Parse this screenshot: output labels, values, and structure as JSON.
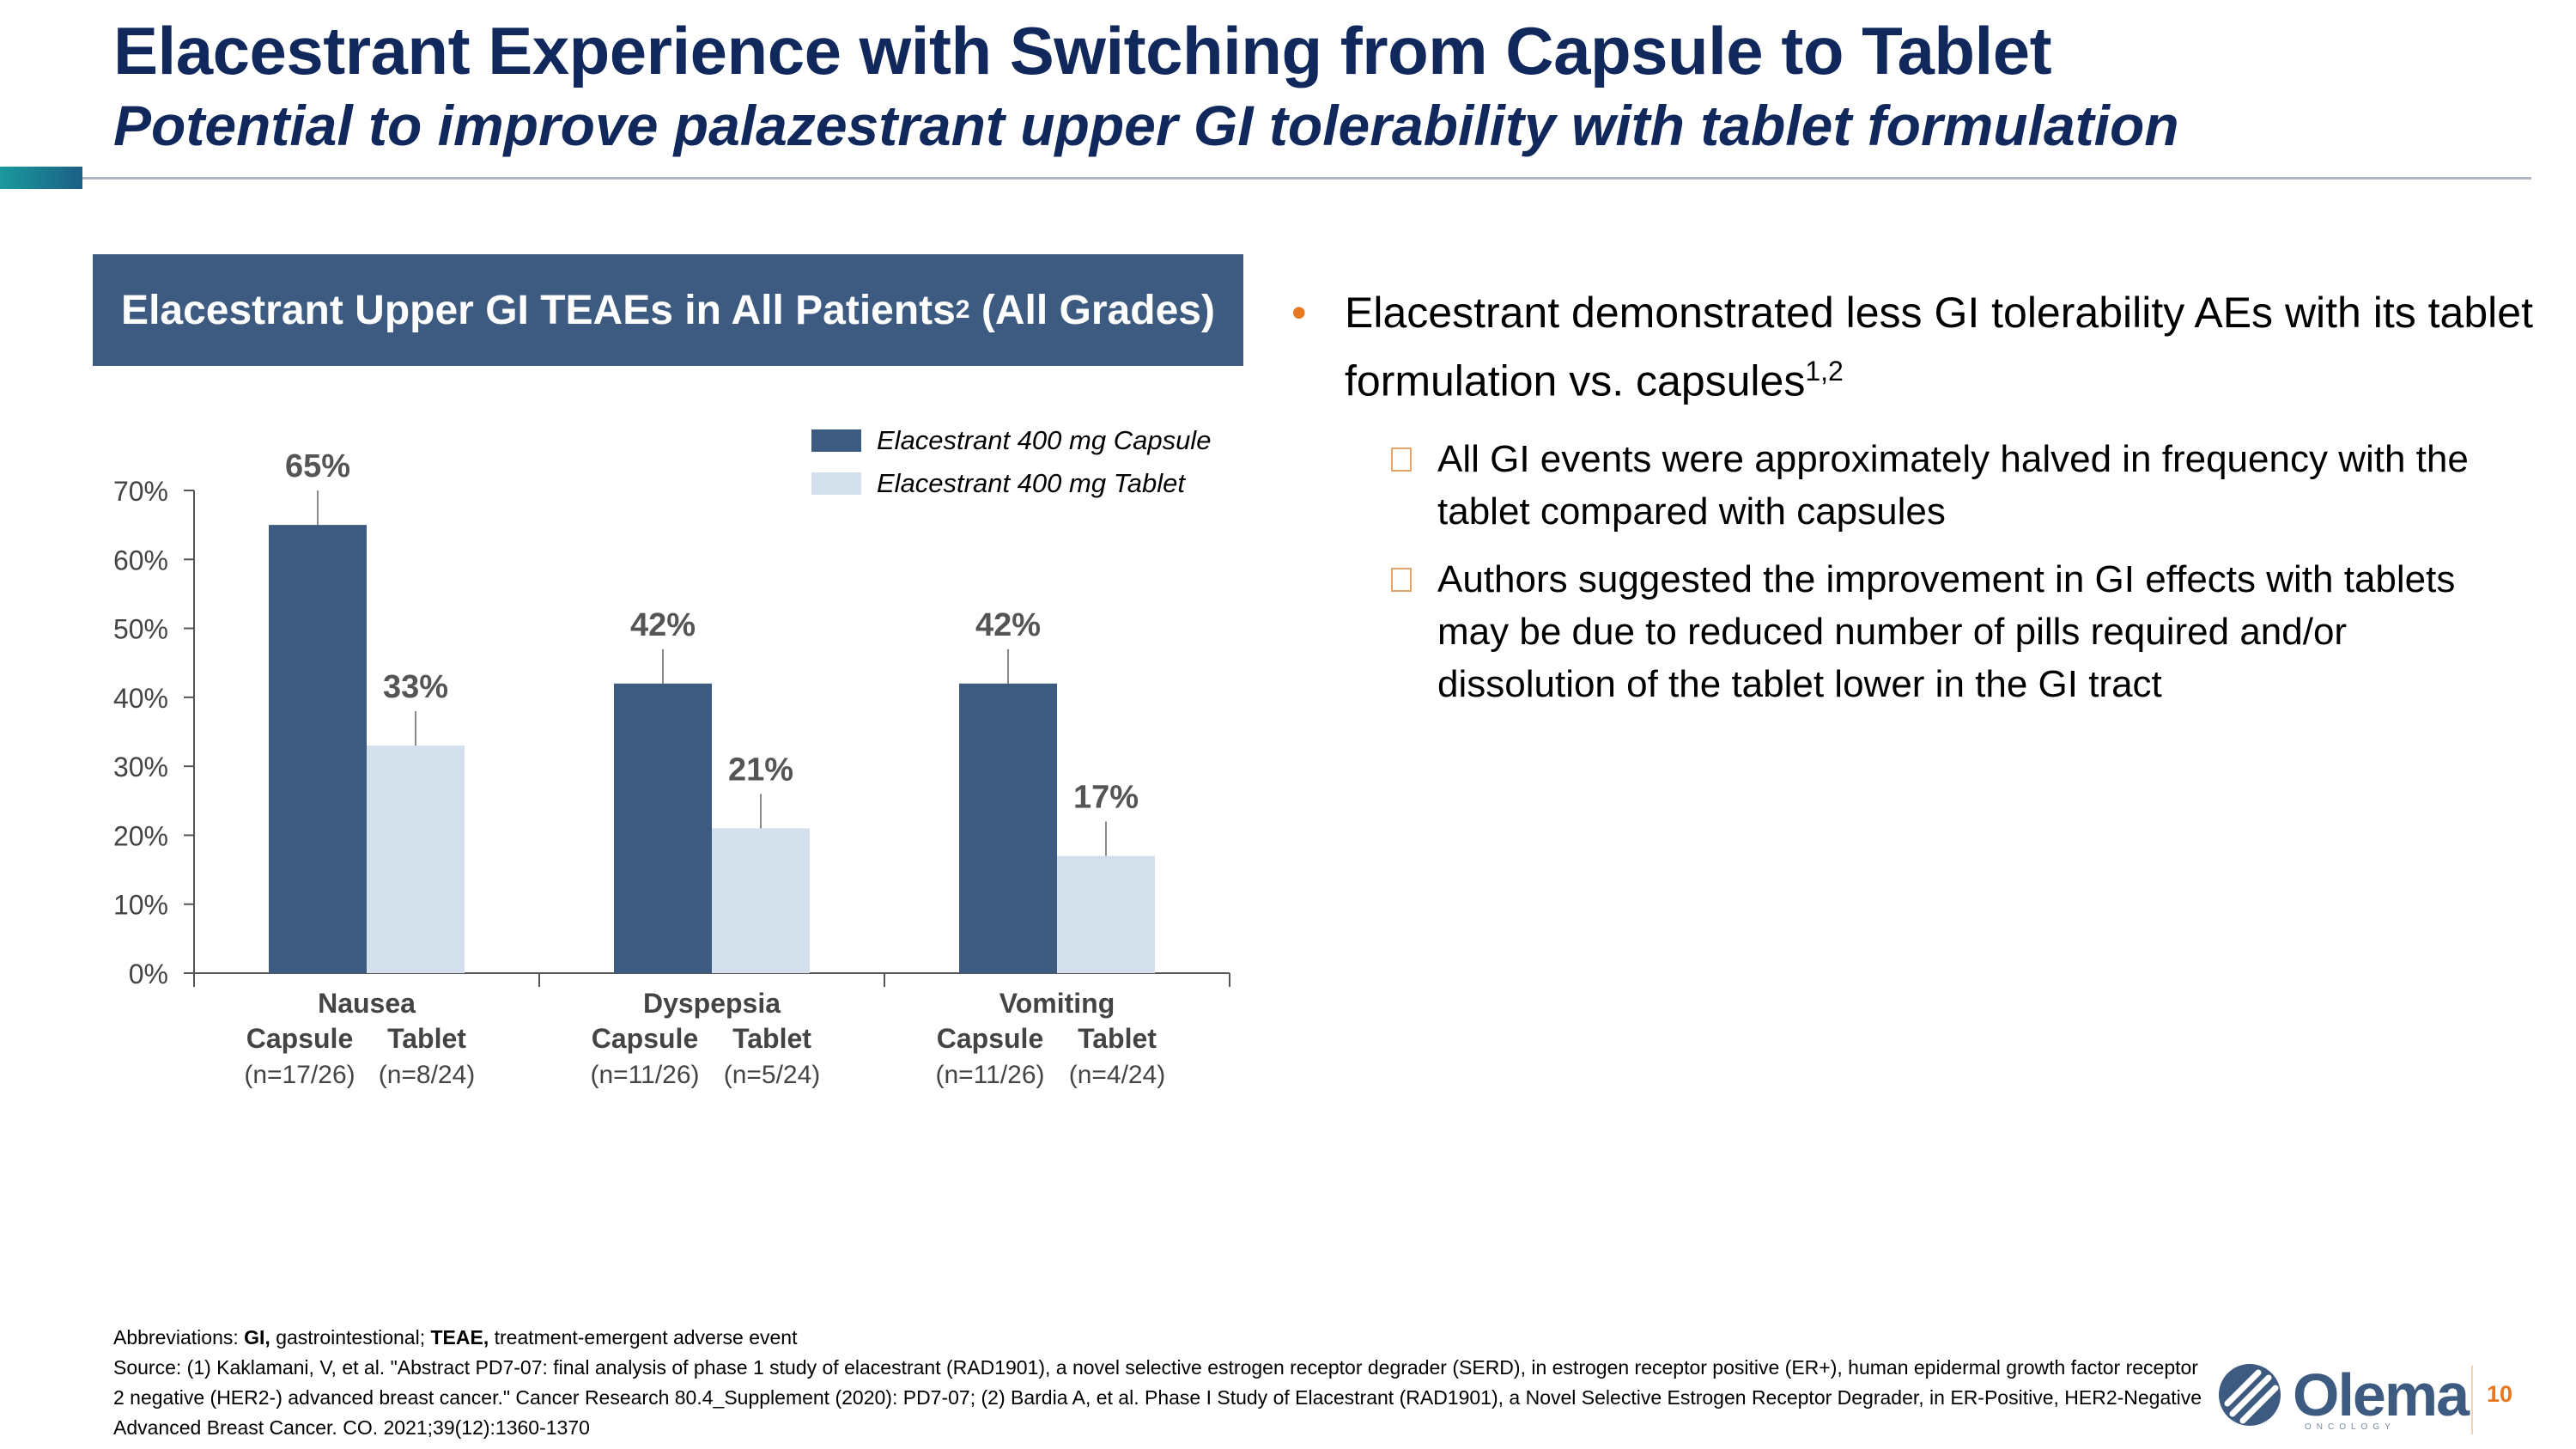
{
  "slide": {
    "title": "Elacestrant Experience with Switching from Capsule to Tablet",
    "subtitle": "Potential to improve palazestrant upper GI tolerability with tablet formulation",
    "page_number": "10"
  },
  "chart_header": {
    "text": "Elacestrant Upper GI TEAEs in All Patients",
    "sup": "2",
    "suffix": " (All Grades)"
  },
  "chart_data": {
    "type": "bar",
    "categories": [
      "Nausea",
      "Dyspepsia",
      "Vomiting"
    ],
    "series": [
      {
        "name": "Elacestrant 400 mg Capsule",
        "values": [
          65,
          42,
          42
        ],
        "labels": [
          "65%",
          "42%",
          "42%"
        ],
        "color": "#3d5a80"
      },
      {
        "name": "Elacestrant 400 mg Tablet",
        "values": [
          33,
          21,
          17
        ],
        "labels": [
          "33%",
          "21%",
          "17%"
        ],
        "color": "#d3dfea"
      }
    ],
    "sub_labels": [
      "Capsule",
      "Tablet"
    ],
    "n_labels": [
      [
        "(n=17/26)",
        "(n=8/24)"
      ],
      [
        "(n=11/26)",
        "(n=5/24)"
      ],
      [
        "(n=11/26)",
        "(n=4/24)"
      ]
    ],
    "y_ticks": [
      "0%",
      "10%",
      "20%",
      "30%",
      "40%",
      "50%",
      "60%",
      "70%"
    ],
    "ylim": [
      0,
      70
    ],
    "legend_position": "top-right"
  },
  "bullets": {
    "main": {
      "text": "Elacestrant demonstrated less GI tolerability AEs with its tablet formulation vs. capsules",
      "sup": "1,2"
    },
    "sub": [
      "All GI events were approximately halved in frequency with the tablet compared with capsules",
      "Authors suggested the improvement in GI effects with tablets may be due to reduced number of pills required and/or dissolution of the tablet lower in the GI tract"
    ]
  },
  "footer": {
    "abbr_label": "Abbreviations: ",
    "abbr_gi": "GI,",
    "abbr_gi_def": " gastrointestional; ",
    "abbr_teae": "TEAE,",
    "abbr_teae_def": " treatment-emergent adverse event",
    "source": "Source: (1) Kaklamani, V, et al. \"Abstract PD7-07: final analysis of phase 1 study of elacestrant (RAD1901), a novel selective estrogen receptor degrader (SERD), in estrogen receptor positive (ER+), human epidermal growth factor receptor 2 negative (HER2-) advanced breast cancer.\" Cancer Research 80.4_Supplement (2020): PD7-07; (2) Bardia A, et al. Phase I Study of Elacestrant (RAD1901), a Novel Selective Estrogen Receptor Degrader, in ER-Positive, HER2-Negative Advanced Breast Cancer. CO. 2021;39(12):1360-1370"
  },
  "logo": {
    "name": "Olema",
    "tagline": "ONCOLOGY"
  }
}
